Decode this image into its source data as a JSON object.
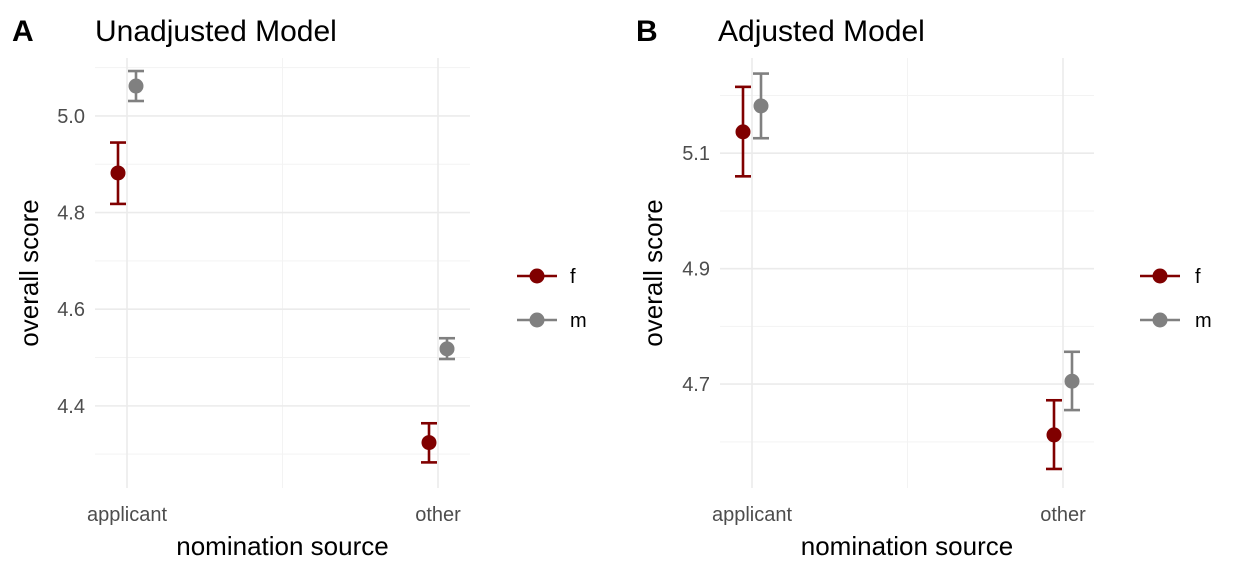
{
  "chart_data": [
    {
      "type": "scatter",
      "tag": "A",
      "title": "Unadjusted Model",
      "xlabel": "nomination source",
      "ylabel": "overall score",
      "categories": [
        "applicant",
        "other"
      ],
      "ylim": [
        4.23,
        5.12
      ],
      "yticks": [
        4.4,
        4.6,
        4.8,
        5.0
      ],
      "yticklabels": [
        "4.4",
        "4.6",
        "4.8",
        "5.0"
      ],
      "grid": true,
      "legend": "right",
      "series": [
        {
          "name": "f",
          "color": "#800000",
          "values": [
            4.882,
            4.324
          ],
          "lower": [
            4.818,
            4.283
          ],
          "upper": [
            4.945,
            4.364
          ]
        },
        {
          "name": "m",
          "color": "#808080",
          "values": [
            5.062,
            4.518
          ],
          "lower": [
            5.031,
            4.497
          ],
          "upper": [
            5.093,
            4.54
          ]
        }
      ]
    },
    {
      "type": "scatter",
      "tag": "B",
      "title": "Adjusted Model",
      "xlabel": "nomination source",
      "ylabel": "overall score",
      "categories": [
        "applicant",
        "other"
      ],
      "ylim": [
        4.52,
        5.265
      ],
      "yticks": [
        4.7,
        4.9,
        5.1
      ],
      "yticklabels": [
        "4.7",
        "4.9",
        "5.1"
      ],
      "grid": true,
      "legend": "right",
      "series": [
        {
          "name": "f",
          "color": "#800000",
          "values": [
            5.137,
            4.612
          ],
          "lower": [
            5.06,
            4.553
          ],
          "upper": [
            5.215,
            4.672
          ]
        },
        {
          "name": "m",
          "color": "#808080",
          "values": [
            5.182,
            4.705
          ],
          "lower": [
            5.126,
            4.655
          ],
          "upper": [
            5.238,
            4.756
          ]
        }
      ]
    }
  ]
}
